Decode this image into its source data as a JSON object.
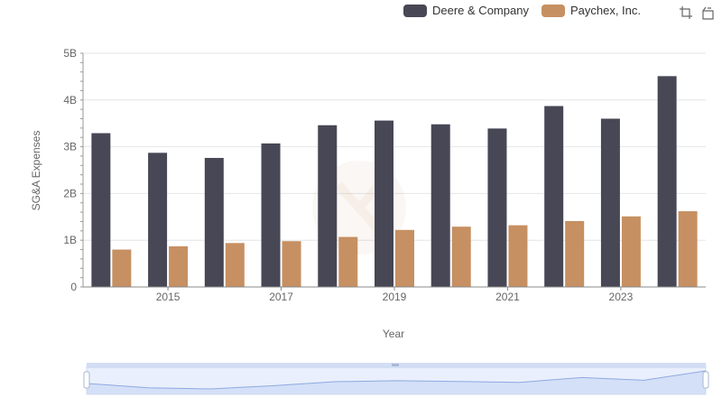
{
  "chart_data": {
    "type": "bar",
    "xlabel": "Year",
    "ylabel": "SG&A Expenses",
    "ylim": [
      0,
      5000000000
    ],
    "y_ticks": [
      "0",
      "1B",
      "2B",
      "3B",
      "4B",
      "5B"
    ],
    "categories": [
      "2014",
      "2015",
      "2016",
      "2017",
      "2018",
      "2019",
      "2020",
      "2021",
      "2022",
      "2023",
      "2024"
    ],
    "x_tick_labels": [
      "2015",
      "2017",
      "2019",
      "2021",
      "2023"
    ],
    "legend_position": "top-right",
    "grid": true,
    "series": [
      {
        "name": "Deere & Company",
        "color": "#474755",
        "values": [
          3290000000,
          2870000000,
          2760000000,
          3070000000,
          3460000000,
          3560000000,
          3480000000,
          3390000000,
          3870000000,
          3600000000,
          4510000000
        ]
      },
      {
        "name": "Paychex, Inc.",
        "color": "#c69062",
        "values": [
          800000000,
          870000000,
          940000000,
          980000000,
          1070000000,
          1220000000,
          1290000000,
          1320000000,
          1410000000,
          1510000000,
          1620000000
        ]
      }
    ]
  },
  "toolbox": {
    "zoom_icon": "zoom-icon",
    "restore_icon": "restore-icon"
  }
}
